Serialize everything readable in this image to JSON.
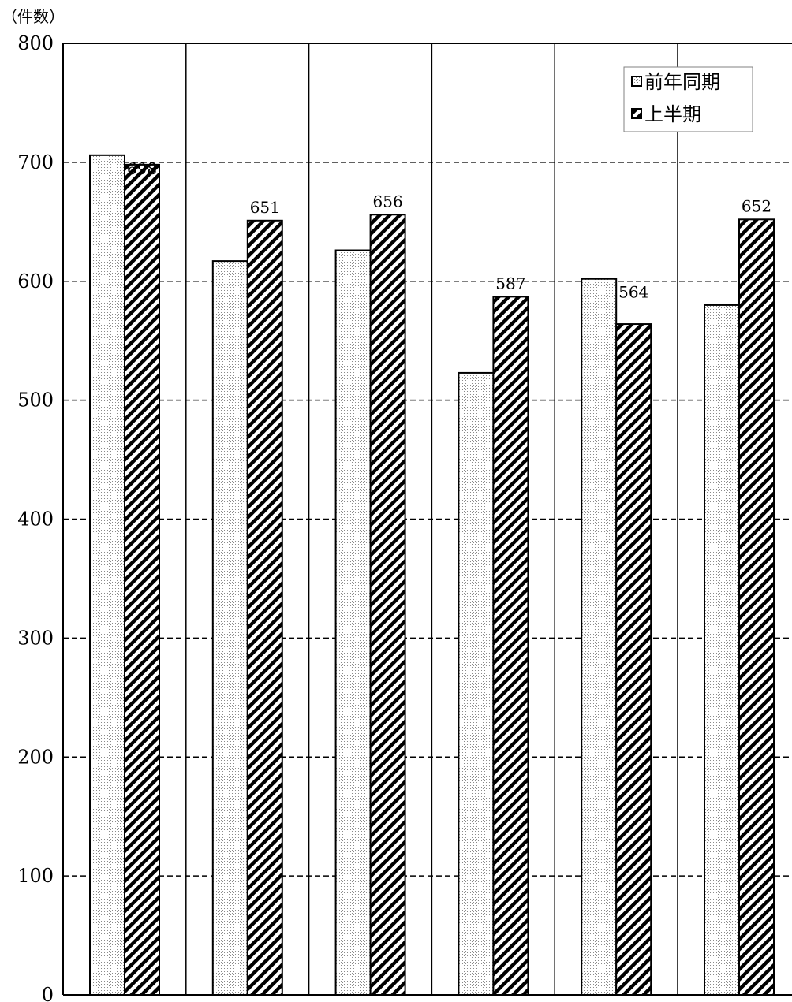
{
  "chart_data": {
    "type": "bar",
    "unit_label": "（件数）",
    "ylim": [
      0,
      800
    ],
    "yticks": [
      "0",
      "100",
      "200",
      "300",
      "400",
      "500",
      "600",
      "700",
      "800"
    ],
    "grid": true,
    "legend_position": "top-right",
    "categories": [
      "",
      "",
      "",
      "",
      "",
      ""
    ],
    "series": [
      {
        "name": "前年同期",
        "values": [
          706,
          617,
          626,
          523,
          602,
          580
        ],
        "labels": [
          null,
          null,
          null,
          null,
          null,
          null
        ]
      },
      {
        "name": "上半期",
        "values": [
          698,
          651,
          656,
          587,
          564,
          652
        ],
        "labels": [
          "698",
          "651",
          "656",
          "587",
          "564",
          "652"
        ]
      }
    ],
    "colors": {
      "stroke": "#000000",
      "stipple": "#9a9a9a",
      "background": "#ffffff"
    }
  }
}
